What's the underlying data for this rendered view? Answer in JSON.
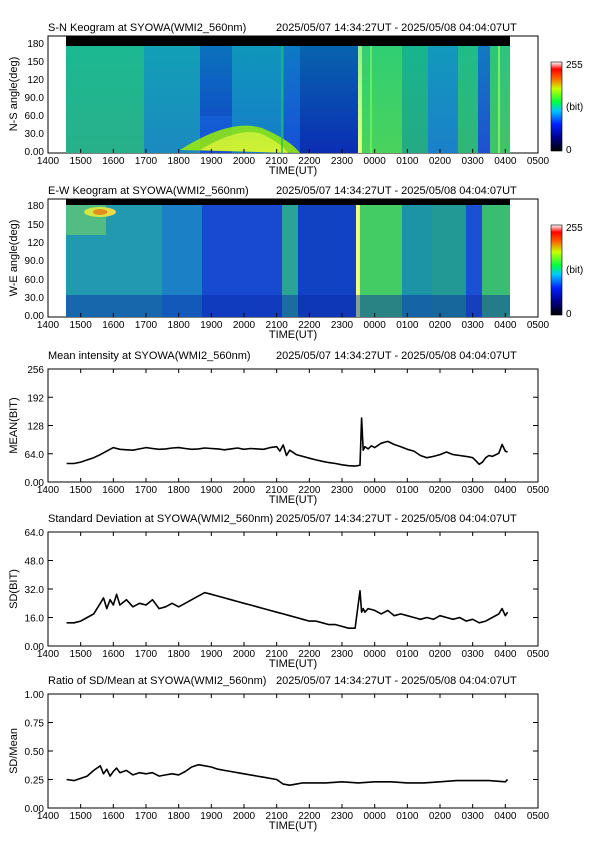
{
  "time_ticks": [
    "1400",
    "1500",
    "1600",
    "1700",
    "1800",
    "1900",
    "2000",
    "2100",
    "2200",
    "2300",
    "0000",
    "0100",
    "0200",
    "0300",
    "0400",
    "0500"
  ],
  "time_label": "TIME(UT)",
  "time_range": "2025/05/07 14:34:27UT - 2025/05/08 04:04:07UT",
  "keograms": [
    {
      "title": "S-N Keogram at SYOWA(WMI2_560nm)",
      "ylabel": "N-S angle(deg)",
      "yticks": [
        "0.00",
        "30.0",
        "60.0",
        "90.0",
        "120",
        "150",
        "180"
      ],
      "colorbar": {
        "max": "255",
        "unit": "(bit)",
        "min": "0"
      }
    },
    {
      "title": "E-W Keogram at SYOWA(WMI2_560nm)",
      "ylabel": "W-E angle(deg)",
      "yticks": [
        "0.00",
        "30.0",
        "60.0",
        "90.0",
        "120",
        "150",
        "180"
      ],
      "colorbar": {
        "max": "255",
        "unit": "(bit)",
        "min": "0"
      }
    }
  ],
  "chart_data": [
    {
      "type": "line",
      "title": "Mean intensity at SYOWA(WMI2_560nm)",
      "xlabel": "TIME(UT)",
      "ylabel": "MEAN(BIT)",
      "yticks": [
        "0.00",
        "64.0",
        "128",
        "192",
        "256"
      ],
      "ylim": [
        0,
        256
      ],
      "x": [
        14.57,
        14.8,
        15.0,
        15.2,
        15.4,
        15.6,
        15.8,
        16.0,
        16.2,
        16.4,
        16.6,
        16.8,
        17.0,
        17.2,
        17.4,
        17.6,
        17.8,
        18.0,
        18.2,
        18.4,
        18.6,
        18.8,
        19.0,
        19.2,
        19.4,
        19.6,
        19.8,
        20.0,
        20.2,
        20.4,
        20.6,
        20.8,
        21.0,
        21.1,
        21.2,
        21.3,
        21.4,
        21.6,
        21.8,
        22.0,
        22.2,
        22.4,
        22.6,
        22.8,
        23.0,
        23.2,
        23.4,
        23.55,
        23.6,
        23.65,
        23.7,
        23.8,
        23.9,
        24.0,
        24.2,
        24.4,
        24.6,
        24.8,
        25.0,
        25.2,
        25.4,
        25.6,
        25.8,
        26.0,
        26.2,
        26.4,
        26.6,
        26.8,
        27.0,
        27.1,
        27.2,
        27.3,
        27.4,
        27.5,
        27.6,
        27.8,
        27.9,
        28.0,
        28.068
      ],
      "y": [
        42,
        42,
        45,
        50,
        55,
        62,
        70,
        78,
        74,
        73,
        72,
        75,
        78,
        76,
        74,
        75,
        77,
        78,
        76,
        74,
        75,
        77,
        76,
        75,
        73,
        75,
        77,
        74,
        76,
        75,
        74,
        78,
        80,
        70,
        84,
        60,
        72,
        62,
        58,
        54,
        50,
        47,
        44,
        42,
        39,
        37,
        36,
        38,
        145,
        72,
        80,
        75,
        82,
        78,
        88,
        92,
        85,
        80,
        74,
        70,
        60,
        55,
        58,
        62,
        68,
        62,
        60,
        58,
        55,
        48,
        40,
        45,
        55,
        60,
        58,
        65,
        85,
        70,
        68
      ]
    },
    {
      "type": "line",
      "title": "Standard Deviation at SYOWA(WMI2_560nm)",
      "xlabel": "TIME(UT)",
      "ylabel": "SD(BIT)",
      "yticks": [
        "0.00",
        "16.0",
        "32.0",
        "48.0",
        "64.0"
      ],
      "ylim": [
        0,
        64
      ],
      "x": [
        14.57,
        14.8,
        15.0,
        15.2,
        15.4,
        15.6,
        15.7,
        15.8,
        15.9,
        16.0,
        16.1,
        16.2,
        16.4,
        16.6,
        16.8,
        17.0,
        17.2,
        17.4,
        17.6,
        17.8,
        18.0,
        18.2,
        18.4,
        18.6,
        18.8,
        19.0,
        19.2,
        19.4,
        19.6,
        19.8,
        20.0,
        20.2,
        20.4,
        20.6,
        20.8,
        21.0,
        21.2,
        21.4,
        21.6,
        21.8,
        22.0,
        22.2,
        22.4,
        22.6,
        22.8,
        23.0,
        23.2,
        23.4,
        23.55,
        23.6,
        23.65,
        23.7,
        23.8,
        24.0,
        24.2,
        24.4,
        24.6,
        24.8,
        25.0,
        25.2,
        25.4,
        25.6,
        25.8,
        26.0,
        26.2,
        26.4,
        26.6,
        26.8,
        27.0,
        27.2,
        27.4,
        27.6,
        27.8,
        27.9,
        28.0,
        28.068
      ],
      "y": [
        13,
        13,
        14,
        16,
        18,
        24,
        27,
        21,
        26,
        23,
        29,
        23,
        26,
        22,
        24,
        23,
        26,
        21,
        22,
        24,
        22,
        24,
        26,
        28,
        30,
        29,
        28,
        27,
        26,
        25,
        24,
        23,
        22,
        21,
        20,
        19,
        18,
        17,
        16,
        15,
        14,
        14,
        13,
        12,
        12,
        11,
        10,
        10,
        31,
        19,
        21,
        19,
        21,
        20,
        18,
        20,
        17,
        18,
        17,
        16,
        15,
        16,
        15,
        17,
        16,
        15,
        16,
        14,
        15,
        13,
        14,
        16,
        18,
        21,
        17,
        19
      ]
    },
    {
      "type": "line",
      "title": "Ratio of SD/Mean at SYOWA(WMI2_560nm)",
      "xlabel": "TIME(UT)",
      "ylabel": "SD/Mean",
      "yticks": [
        "0.00",
        "0.25",
        "0.50",
        "0.75",
        "1.00"
      ],
      "ylim": [
        0,
        1
      ],
      "x": [
        14.57,
        14.8,
        15.0,
        15.2,
        15.4,
        15.6,
        15.7,
        15.8,
        15.9,
        16.0,
        16.1,
        16.2,
        16.4,
        16.6,
        16.8,
        17.0,
        17.2,
        17.4,
        17.6,
        17.8,
        18.0,
        18.2,
        18.4,
        18.6,
        18.8,
        19.0,
        19.2,
        19.4,
        19.6,
        19.8,
        20.0,
        20.2,
        20.4,
        20.6,
        20.8,
        21.0,
        21.2,
        21.4,
        21.6,
        21.8,
        22.0,
        22.5,
        23.0,
        23.5,
        24.0,
        24.5,
        25.0,
        25.5,
        26.0,
        26.5,
        27.0,
        27.5,
        28.0,
        28.068
      ],
      "y": [
        0.25,
        0.24,
        0.26,
        0.28,
        0.33,
        0.37,
        0.3,
        0.34,
        0.28,
        0.32,
        0.35,
        0.31,
        0.33,
        0.29,
        0.31,
        0.3,
        0.31,
        0.28,
        0.29,
        0.3,
        0.29,
        0.32,
        0.36,
        0.38,
        0.37,
        0.36,
        0.34,
        0.33,
        0.32,
        0.31,
        0.3,
        0.29,
        0.28,
        0.27,
        0.26,
        0.25,
        0.21,
        0.2,
        0.21,
        0.22,
        0.22,
        0.22,
        0.23,
        0.22,
        0.23,
        0.23,
        0.22,
        0.22,
        0.23,
        0.24,
        0.24,
        0.24,
        0.23,
        0.25
      ]
    }
  ]
}
